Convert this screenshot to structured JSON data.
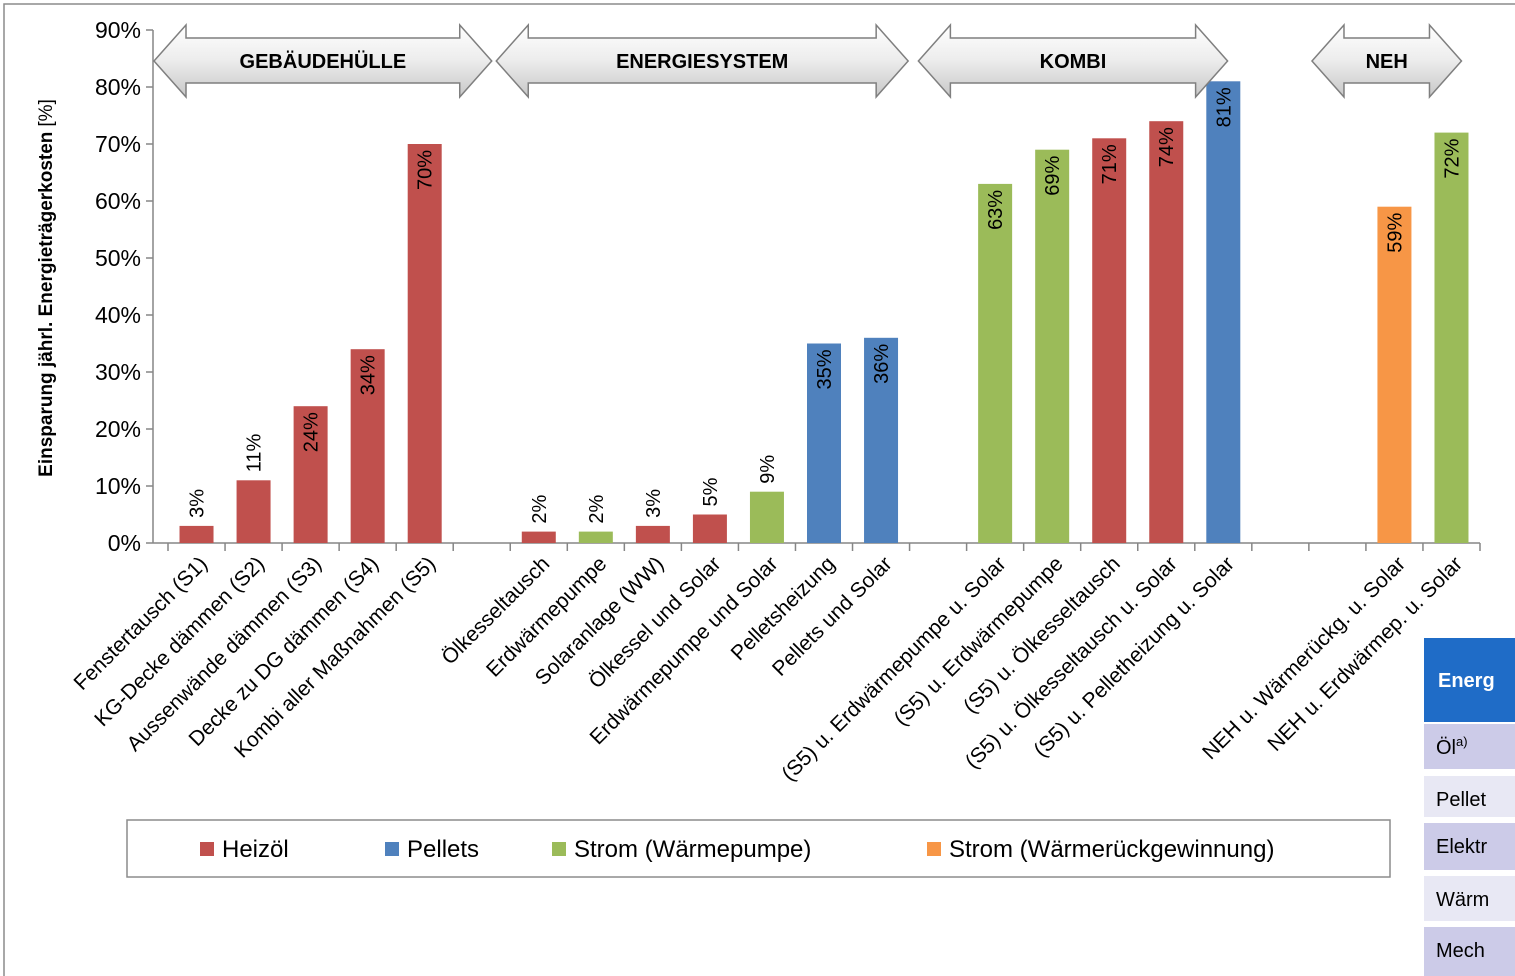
{
  "chart_data": {
    "type": "bar",
    "y_label": "Einsparung jährl. Energieträgerkosten",
    "y_label_unit": "[%]",
    "categories": [
      "Fenstertausch (S1)",
      "KG-Decke dämmen (S2)",
      "Aussenwände dämmen (S3)",
      "Decke zu DG dämmen (S4)",
      "Kombi aller Maßnahmen (S5)",
      null,
      "Ölkesseltausch",
      "Erdwärmepumpe",
      "Solaranlage (WW)",
      "Ölkessel und Solar",
      "Erdwärmepumpe und Solar",
      "Pelletsheizung",
      "Pellets und Solar",
      null,
      "(S5) u. Erdwärmepumpe u. Solar",
      "(S5) u. Erdwärmepumpe",
      "(S5) u. Ölkesseltausch",
      "(S5) u. Ölkesseltausch u. Solar",
      "(S5) u. Pelletheizung u. Solar",
      null,
      null,
      "NEH u. Wärmerückg. u. Solar",
      "NEH u. Erdwärmep. u. Solar"
    ],
    "groups": [
      "GEBÄUDEHÜLLE",
      "ENERGIESYSTEM",
      "KOMBI",
      "NEH"
    ],
    "series": [
      {
        "name": "Heizöl",
        "color": "#c0504d",
        "values": [
          3,
          11,
          24,
          34,
          70,
          null,
          2,
          null,
          3,
          5,
          null,
          null,
          null,
          null,
          null,
          null,
          71,
          74,
          null,
          null,
          null,
          null,
          null
        ],
        "value_labels": [
          "3%",
          "11%",
          "24%",
          "34%",
          "70%",
          null,
          "2%",
          null,
          "3%",
          "5%",
          null,
          null,
          null,
          null,
          null,
          null,
          "71%",
          "74%",
          null,
          null,
          null,
          null,
          null
        ]
      },
      {
        "name": "Pellets",
        "color": "#4f81bd",
        "values": [
          null,
          null,
          null,
          null,
          null,
          null,
          null,
          null,
          null,
          null,
          null,
          35,
          36,
          null,
          null,
          null,
          null,
          null,
          81,
          null,
          null,
          null,
          null
        ],
        "value_labels": [
          null,
          null,
          null,
          null,
          null,
          null,
          null,
          null,
          null,
          null,
          null,
          "35%",
          "36%",
          null,
          null,
          null,
          null,
          null,
          "81%",
          null,
          null,
          null,
          null
        ]
      },
      {
        "name": "Strom (Wärmepumpe)",
        "color": "#9bbb59",
        "values": [
          null,
          null,
          null,
          null,
          null,
          null,
          null,
          2,
          null,
          null,
          9,
          null,
          null,
          null,
          63,
          69,
          null,
          null,
          null,
          null,
          null,
          null,
          72
        ],
        "value_labels": [
          null,
          null,
          null,
          null,
          null,
          null,
          null,
          "2%",
          null,
          null,
          "9%",
          null,
          null,
          null,
          "63%",
          "69%",
          null,
          null,
          null,
          null,
          null,
          null,
          "72%"
        ]
      },
      {
        "name": "Strom (Wärmerückgewinnung)",
        "color": "#f79646",
        "values": [
          null,
          null,
          null,
          null,
          null,
          null,
          null,
          null,
          null,
          null,
          null,
          null,
          null,
          null,
          null,
          null,
          null,
          null,
          null,
          null,
          null,
          59,
          null
        ],
        "value_labels": [
          null,
          null,
          null,
          null,
          null,
          null,
          null,
          null,
          null,
          null,
          null,
          null,
          null,
          null,
          null,
          null,
          null,
          null,
          null,
          null,
          null,
          "59%",
          null
        ]
      }
    ],
    "ylim": [
      0,
      90
    ],
    "yticks": [
      {
        "value": 0,
        "label": "0%"
      },
      {
        "value": 10,
        "label": "10%"
      },
      {
        "value": 20,
        "label": "20%"
      },
      {
        "value": 30,
        "label": "30%"
      },
      {
        "value": 40,
        "label": "40%"
      },
      {
        "value": 50,
        "label": "50%"
      },
      {
        "value": 60,
        "label": "60%"
      },
      {
        "value": 70,
        "label": "70%"
      },
      {
        "value": 80,
        "label": "80%"
      },
      {
        "value": 90,
        "label": "90%"
      }
    ],
    "grid": false,
    "legend": "bottom"
  },
  "side_table": {
    "header": "Energ",
    "rows": [
      [
        "Öl",
        "a)"
      ],
      [
        "Pellet"
      ],
      [
        "Elektr"
      ],
      [
        "Wärm"
      ],
      [
        "Mech"
      ]
    ]
  }
}
